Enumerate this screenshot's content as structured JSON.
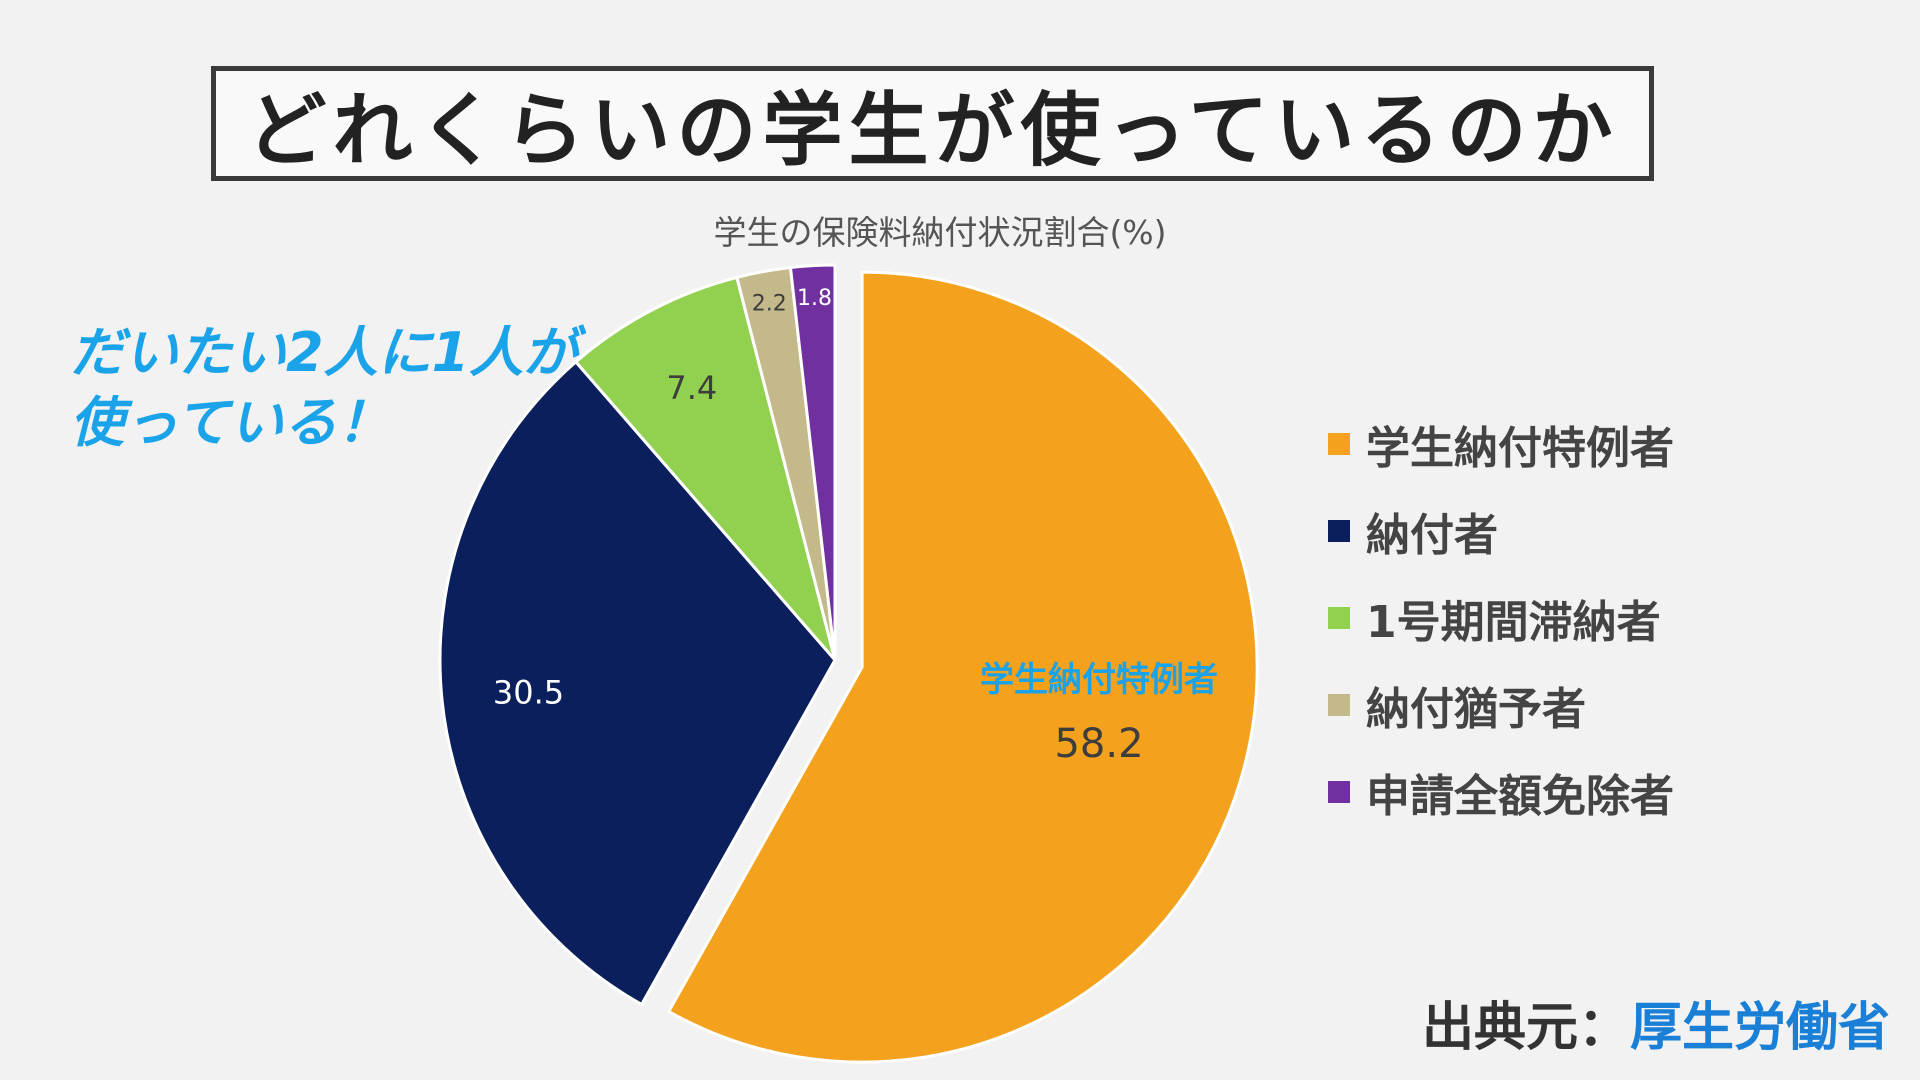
{
  "title": "どれくらいの学生が使っているのか",
  "callout": {
    "line1": "だいたい2人に1人が",
    "line2": "使っている！"
  },
  "source": {
    "prefix": "出典元：",
    "name": "厚生労働省"
  },
  "chart_data": {
    "type": "pie",
    "title": "学生の保険料納付状況割合(%)",
    "legend_position": "right",
    "slices": [
      {
        "label": "学生納付特例者",
        "value": 58.2,
        "color": "#f4a11d",
        "exploded": true,
        "inner_label": "学生納付特例者",
        "inner_label_color": "#1aa3e8",
        "value_label_color": "#3d3d3d"
      },
      {
        "label": "納付者",
        "value": 30.5,
        "color": "#0b1f5c",
        "exploded": false,
        "value_label_color": "#ffffff"
      },
      {
        "label": "1号期間滞納者",
        "value": 7.4,
        "color": "#92d050",
        "exploded": false,
        "value_label_color": "#3d3d3d"
      },
      {
        "label": "納付猶予者",
        "value": 2.2,
        "color": "#c4b98a",
        "exploded": false,
        "value_label_color": "#3d3d3d"
      },
      {
        "label": "申請全額免除者",
        "value": 1.8,
        "color": "#7030a0",
        "exploded": false,
        "value_label_color": "#ffffff"
      }
    ]
  }
}
